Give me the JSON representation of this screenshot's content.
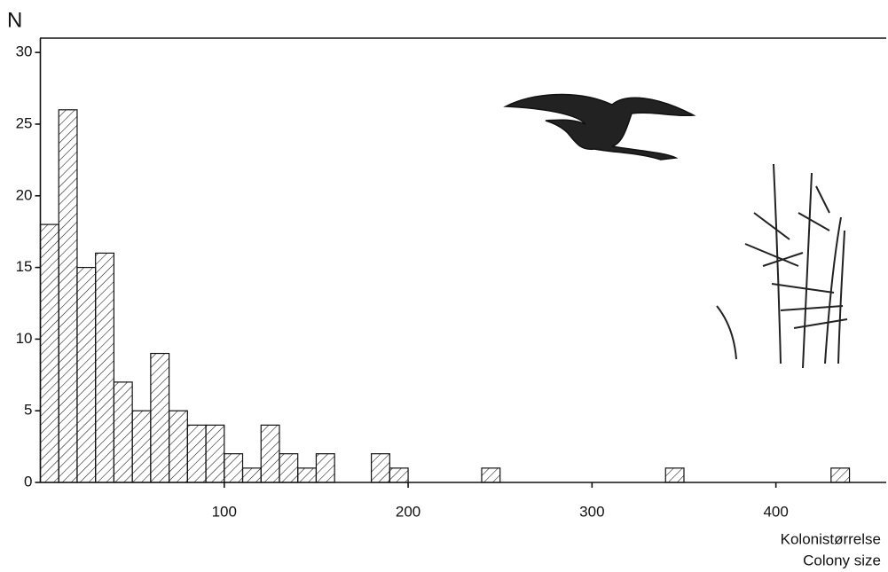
{
  "chart_data": {
    "type": "histogram",
    "y_label": "N",
    "x_label": "Kolonistørrelse",
    "x_label_2": "Colony size",
    "bins": [
      0,
      10,
      20,
      30,
      40,
      50,
      60,
      70,
      80,
      90,
      100,
      110,
      120,
      130,
      140,
      150,
      160,
      170,
      180,
      190,
      200,
      210,
      220,
      230,
      240,
      250,
      260,
      270,
      280,
      290,
      300,
      310,
      320,
      330,
      340,
      350,
      360,
      370,
      380,
      390,
      400,
      410,
      420,
      430,
      440
    ],
    "values": [
      18,
      26,
      15,
      16,
      7,
      5,
      9,
      5,
      4,
      4,
      2,
      1,
      4,
      2,
      1,
      2,
      0,
      0,
      2,
      1,
      0,
      0,
      0,
      0,
      1,
      0,
      0,
      0,
      0,
      0,
      0,
      0,
      0,
      0,
      1,
      0,
      0,
      0,
      0,
      0,
      0,
      0,
      0,
      1
    ],
    "xlim": [
      0,
      460
    ],
    "ylim": [
      0,
      31
    ],
    "xticks": [
      100,
      200,
      300,
      400
    ],
    "yticks": [
      0,
      5,
      10,
      15,
      20,
      25,
      30
    ],
    "color": "#111111"
  }
}
